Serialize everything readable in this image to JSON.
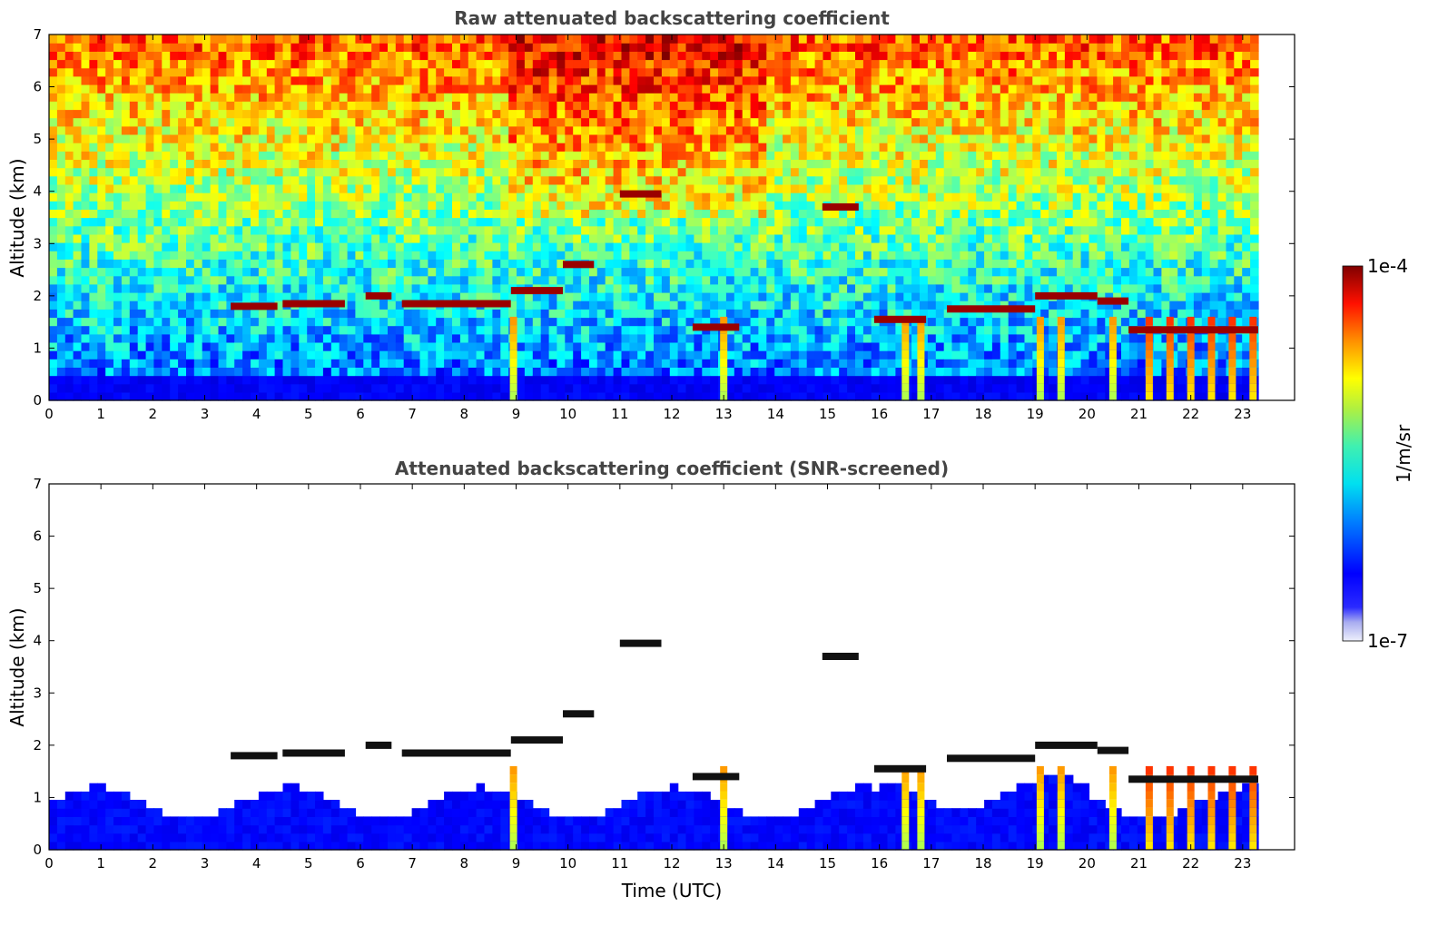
{
  "chart_data": [
    {
      "type": "heatmap",
      "title": "Raw attenuated backscattering coefficient",
      "ylabel": "Altitude (km)",
      "xlabel": "",
      "xlim": [
        0,
        24
      ],
      "ylim": [
        0,
        7
      ],
      "x_ticks": [
        "0",
        "1",
        "2",
        "3",
        "4",
        "5",
        "6",
        "7",
        "8",
        "9",
        "10",
        "11",
        "12",
        "13",
        "14",
        "15",
        "16",
        "17",
        "18",
        "19",
        "20",
        "21",
        "22",
        "23"
      ],
      "y_ticks": [
        "0",
        "1",
        "2",
        "3",
        "4",
        "5",
        "6",
        "7"
      ],
      "data_end_time": 23.3,
      "screened": false,
      "cloud_layers": [
        {
          "t0": 3.5,
          "t1": 4.4,
          "alt": 1.8
        },
        {
          "t0": 4.5,
          "t1": 5.7,
          "alt": 1.85
        },
        {
          "t0": 6.1,
          "t1": 6.6,
          "alt": 2.0
        },
        {
          "t0": 6.8,
          "t1": 8.9,
          "alt": 1.85
        },
        {
          "t0": 8.9,
          "t1": 9.9,
          "alt": 2.1
        },
        {
          "t0": 9.9,
          "t1": 10.5,
          "alt": 2.6
        },
        {
          "t0": 11.0,
          "t1": 11.8,
          "alt": 3.95
        },
        {
          "t0": 12.4,
          "t1": 13.3,
          "alt": 1.4
        },
        {
          "t0": 14.9,
          "t1": 15.6,
          "alt": 3.7
        },
        {
          "t0": 15.9,
          "t1": 16.9,
          "alt": 1.55
        },
        {
          "t0": 17.3,
          "t1": 19.0,
          "alt": 1.75
        },
        {
          "t0": 19.0,
          "t1": 20.2,
          "alt": 2.0
        },
        {
          "t0": 20.2,
          "t1": 20.8,
          "alt": 1.9
        },
        {
          "t0": 20.8,
          "t1": 23.3,
          "alt": 1.35
        }
      ],
      "precip_columns": [
        8.95,
        13.0,
        16.5,
        16.8,
        19.1,
        19.5,
        20.5,
        21.2,
        21.6,
        22.0,
        22.4,
        22.8,
        23.2
      ]
    },
    {
      "type": "heatmap",
      "title": "Attenuated backscattering coefficient (SNR-screened)",
      "ylabel": "Altitude (km)",
      "xlabel": "Time (UTC)",
      "xlim": [
        0,
        24
      ],
      "ylim": [
        0,
        7
      ],
      "x_ticks": [
        "0",
        "1",
        "2",
        "3",
        "4",
        "5",
        "6",
        "7",
        "8",
        "9",
        "10",
        "11",
        "12",
        "13",
        "14",
        "15",
        "16",
        "17",
        "18",
        "19",
        "20",
        "21",
        "22",
        "23"
      ],
      "y_ticks": [
        "0",
        "1",
        "2",
        "3",
        "4",
        "5",
        "6",
        "7"
      ],
      "data_end_time": 23.3,
      "screened": true
    }
  ],
  "colorbar": {
    "max_label": "1e-4",
    "min_label": "1e-7",
    "unit_label": "1/m/sr",
    "colormap": "jet",
    "low_colors": [
      "#e8e8f8",
      "#9aa0ee",
      "#2020ff"
    ]
  }
}
